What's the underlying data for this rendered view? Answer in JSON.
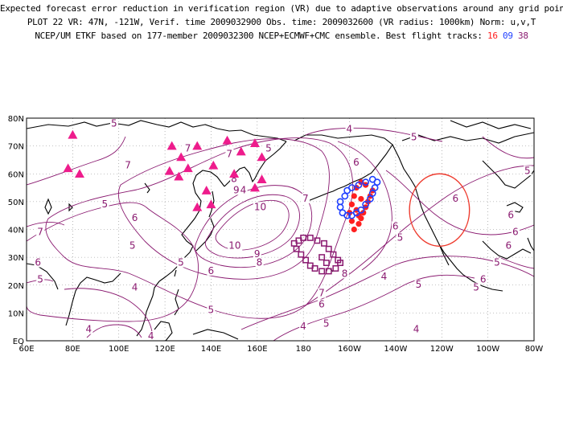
{
  "header": {
    "line1": "Expected forecast error reduction in verification region (VR) due to adaptive observations around any grid point.",
    "line2": "PLOT 22 VR: 47N, -121W, Verif. time 2009032900 Obs. time: 2009032600 (VR radius: 1000km) Norm: u,v,T",
    "line3_prefix": "NCEP/UM ETKF based on 177-member 2009032300 NCEP+ECMWF+CMC ensemble. Best flight tracks: ",
    "track_a": "16",
    "track_b": "09",
    "track_c": "38"
  },
  "map": {
    "lon_labels": [
      "60E",
      "80E",
      "100E",
      "120E",
      "140E",
      "160E",
      "180",
      "160W",
      "140W",
      "120W",
      "100W",
      "80W"
    ],
    "lat_labels": [
      "EQ",
      "10N",
      "20N",
      "30N",
      "40N",
      "50N",
      "60N",
      "70N",
      "80N"
    ],
    "extent": {
      "lon_min": 60,
      "lon_max": 280,
      "lat_min": 0,
      "lat_max": 80
    },
    "grid": "dotted every 20 deg lon / 10 deg lat",
    "colors": {
      "contour": "#8a1a70",
      "coast": "#000000",
      "triangles": "#ee1c8c",
      "track_16": "#ff2020",
      "track_09": "#2040ff",
      "track_38": "#8a1a70",
      "vr_circle": "#ee3b2e"
    },
    "contour_labels": [
      {
        "text": "5",
        "lon": 98,
        "lat": 77
      },
      {
        "text": "4",
        "lon": 154,
        "lat": 53
      },
      {
        "text": "5",
        "lon": 165,
        "lat": 68
      },
      {
        "text": "7",
        "lon": 130,
        "lat": 68
      },
      {
        "text": "4",
        "lon": 200,
        "lat": 75
      },
      {
        "text": "5",
        "lon": 228,
        "lat": 72
      },
      {
        "text": "6",
        "lon": 203,
        "lat": 63
      },
      {
        "text": "7",
        "lon": 148,
        "lat": 66
      },
      {
        "text": "8",
        "lon": 150,
        "lat": 57
      },
      {
        "text": "9",
        "lon": 151,
        "lat": 53
      },
      {
        "text": "10",
        "lon": 160,
        "lat": 47
      },
      {
        "text": "7",
        "lon": 181,
        "lat": 50
      },
      {
        "text": "7",
        "lon": 104,
        "lat": 62
      },
      {
        "text": "5",
        "lon": 94,
        "lat": 48
      },
      {
        "text": "6",
        "lon": 107,
        "lat": 43
      },
      {
        "text": "7",
        "lon": 66,
        "lat": 38
      },
      {
        "text": "5",
        "lon": 106,
        "lat": 33
      },
      {
        "text": "6",
        "lon": 65,
        "lat": 27
      },
      {
        "text": "5",
        "lon": 127,
        "lat": 27
      },
      {
        "text": "10",
        "lon": 149,
        "lat": 33
      },
      {
        "text": "9",
        "lon": 160,
        "lat": 30
      },
      {
        "text": "8",
        "lon": 161,
        "lat": 27
      },
      {
        "text": "6",
        "lon": 140,
        "lat": 24
      },
      {
        "text": "4",
        "lon": 107,
        "lat": 18
      },
      {
        "text": "5",
        "lon": 66,
        "lat": 21
      },
      {
        "text": "5",
        "lon": 140,
        "lat": 10
      },
      {
        "text": "4",
        "lon": 114,
        "lat": 0
      },
      {
        "text": "4",
        "lon": 87,
        "lat": 3
      },
      {
        "text": "4",
        "lon": 180,
        "lat": 4
      },
      {
        "text": "7",
        "lon": 188,
        "lat": 16
      },
      {
        "text": "6",
        "lon": 188,
        "lat": 12
      },
      {
        "text": "5",
        "lon": 190,
        "lat": 5
      },
      {
        "text": "8",
        "lon": 198,
        "lat": 23
      },
      {
        "text": "4",
        "lon": 215,
        "lat": 22
      },
      {
        "text": "5",
        "lon": 230,
        "lat": 19
      },
      {
        "text": "5",
        "lon": 255,
        "lat": 18
      },
      {
        "text": "4",
        "lon": 229,
        "lat": 3
      },
      {
        "text": "6",
        "lon": 220,
        "lat": 40
      },
      {
        "text": "5",
        "lon": 222,
        "lat": 36
      },
      {
        "text": "6",
        "lon": 246,
        "lat": 50
      },
      {
        "text": "6",
        "lon": 269,
        "lat": 33
      },
      {
        "text": "5",
        "lon": 264,
        "lat": 27
      },
      {
        "text": "6",
        "lon": 258,
        "lat": 21
      },
      {
        "text": "5",
        "lon": 280,
        "lat": 60
      },
      {
        "text": "6",
        "lon": 272,
        "lat": 38
      },
      {
        "text": "6",
        "lon": 270,
        "lat": 44
      }
    ],
    "triangles": [
      {
        "lon": 80,
        "lat": 74
      },
      {
        "lon": 78,
        "lat": 62
      },
      {
        "lon": 83,
        "lat": 60
      },
      {
        "lon": 123,
        "lat": 70
      },
      {
        "lon": 127,
        "lat": 66
      },
      {
        "lon": 134,
        "lat": 70
      },
      {
        "lon": 122,
        "lat": 61
      },
      {
        "lon": 126,
        "lat": 59
      },
      {
        "lon": 130,
        "lat": 62
      },
      {
        "lon": 141,
        "lat": 63
      },
      {
        "lon": 147,
        "lat": 72
      },
      {
        "lon": 153,
        "lat": 68
      },
      {
        "lon": 159,
        "lat": 71
      },
      {
        "lon": 162,
        "lat": 66
      },
      {
        "lon": 150,
        "lat": 60
      },
      {
        "lon": 162,
        "lat": 58
      },
      {
        "lon": 159,
        "lat": 55
      },
      {
        "lon": 134,
        "lat": 48
      },
      {
        "lon": 140,
        "lat": 49
      },
      {
        "lon": 138,
        "lat": 54
      }
    ],
    "track_16_points": [
      {
        "lon": 210,
        "lat": 54
      },
      {
        "lon": 209,
        "lat": 52
      },
      {
        "lon": 208,
        "lat": 50
      },
      {
        "lon": 207,
        "lat": 48
      },
      {
        "lon": 206,
        "lat": 46
      },
      {
        "lon": 205,
        "lat": 44
      },
      {
        "lon": 204,
        "lat": 42
      },
      {
        "lon": 202,
        "lat": 40
      },
      {
        "lon": 201,
        "lat": 43
      },
      {
        "lon": 200,
        "lat": 46
      },
      {
        "lon": 201,
        "lat": 49
      },
      {
        "lon": 202,
        "lat": 52
      },
      {
        "lon": 203,
        "lat": 55
      },
      {
        "lon": 205,
        "lat": 57
      },
      {
        "lon": 207,
        "lat": 56
      },
      {
        "lon": 205,
        "lat": 51
      },
      {
        "lon": 203,
        "lat": 47
      },
      {
        "lon": 204,
        "lat": 45
      }
    ],
    "track_09_points": [
      {
        "lon": 198,
        "lat": 52
      },
      {
        "lon": 199,
        "lat": 54
      },
      {
        "lon": 201,
        "lat": 55
      },
      {
        "lon": 204,
        "lat": 56
      },
      {
        "lon": 207,
        "lat": 57
      },
      {
        "lon": 210,
        "lat": 58
      },
      {
        "lon": 212,
        "lat": 57
      },
      {
        "lon": 211,
        "lat": 55
      },
      {
        "lon": 210,
        "lat": 53
      },
      {
        "lon": 209,
        "lat": 51
      },
      {
        "lon": 207,
        "lat": 49
      },
      {
        "lon": 205,
        "lat": 47
      },
      {
        "lon": 203,
        "lat": 46
      },
      {
        "lon": 201,
        "lat": 45
      },
      {
        "lon": 199,
        "lat": 45
      },
      {
        "lon": 197,
        "lat": 46
      },
      {
        "lon": 196,
        "lat": 48
      },
      {
        "lon": 196,
        "lat": 50
      }
    ],
    "track_38_points": [
      {
        "lon": 178,
        "lat": 36
      },
      {
        "lon": 180,
        "lat": 37
      },
      {
        "lon": 183,
        "lat": 37
      },
      {
        "lon": 186,
        "lat": 36
      },
      {
        "lon": 189,
        "lat": 35
      },
      {
        "lon": 191,
        "lat": 33
      },
      {
        "lon": 193,
        "lat": 31
      },
      {
        "lon": 195,
        "lat": 29
      },
      {
        "lon": 196,
        "lat": 28
      },
      {
        "lon": 194,
        "lat": 26
      },
      {
        "lon": 191,
        "lat": 25
      },
      {
        "lon": 188,
        "lat": 25
      },
      {
        "lon": 185,
        "lat": 26
      },
      {
        "lon": 183,
        "lat": 27
      },
      {
        "lon": 181,
        "lat": 29
      },
      {
        "lon": 179,
        "lat": 31
      },
      {
        "lon": 177,
        "lat": 33
      },
      {
        "lon": 176,
        "lat": 35
      },
      {
        "lon": 188,
        "lat": 30
      },
      {
        "lon": 190,
        "lat": 28
      }
    ],
    "vr_circle": {
      "lon": 239,
      "lat": 47,
      "radius_deg": 13
    }
  }
}
